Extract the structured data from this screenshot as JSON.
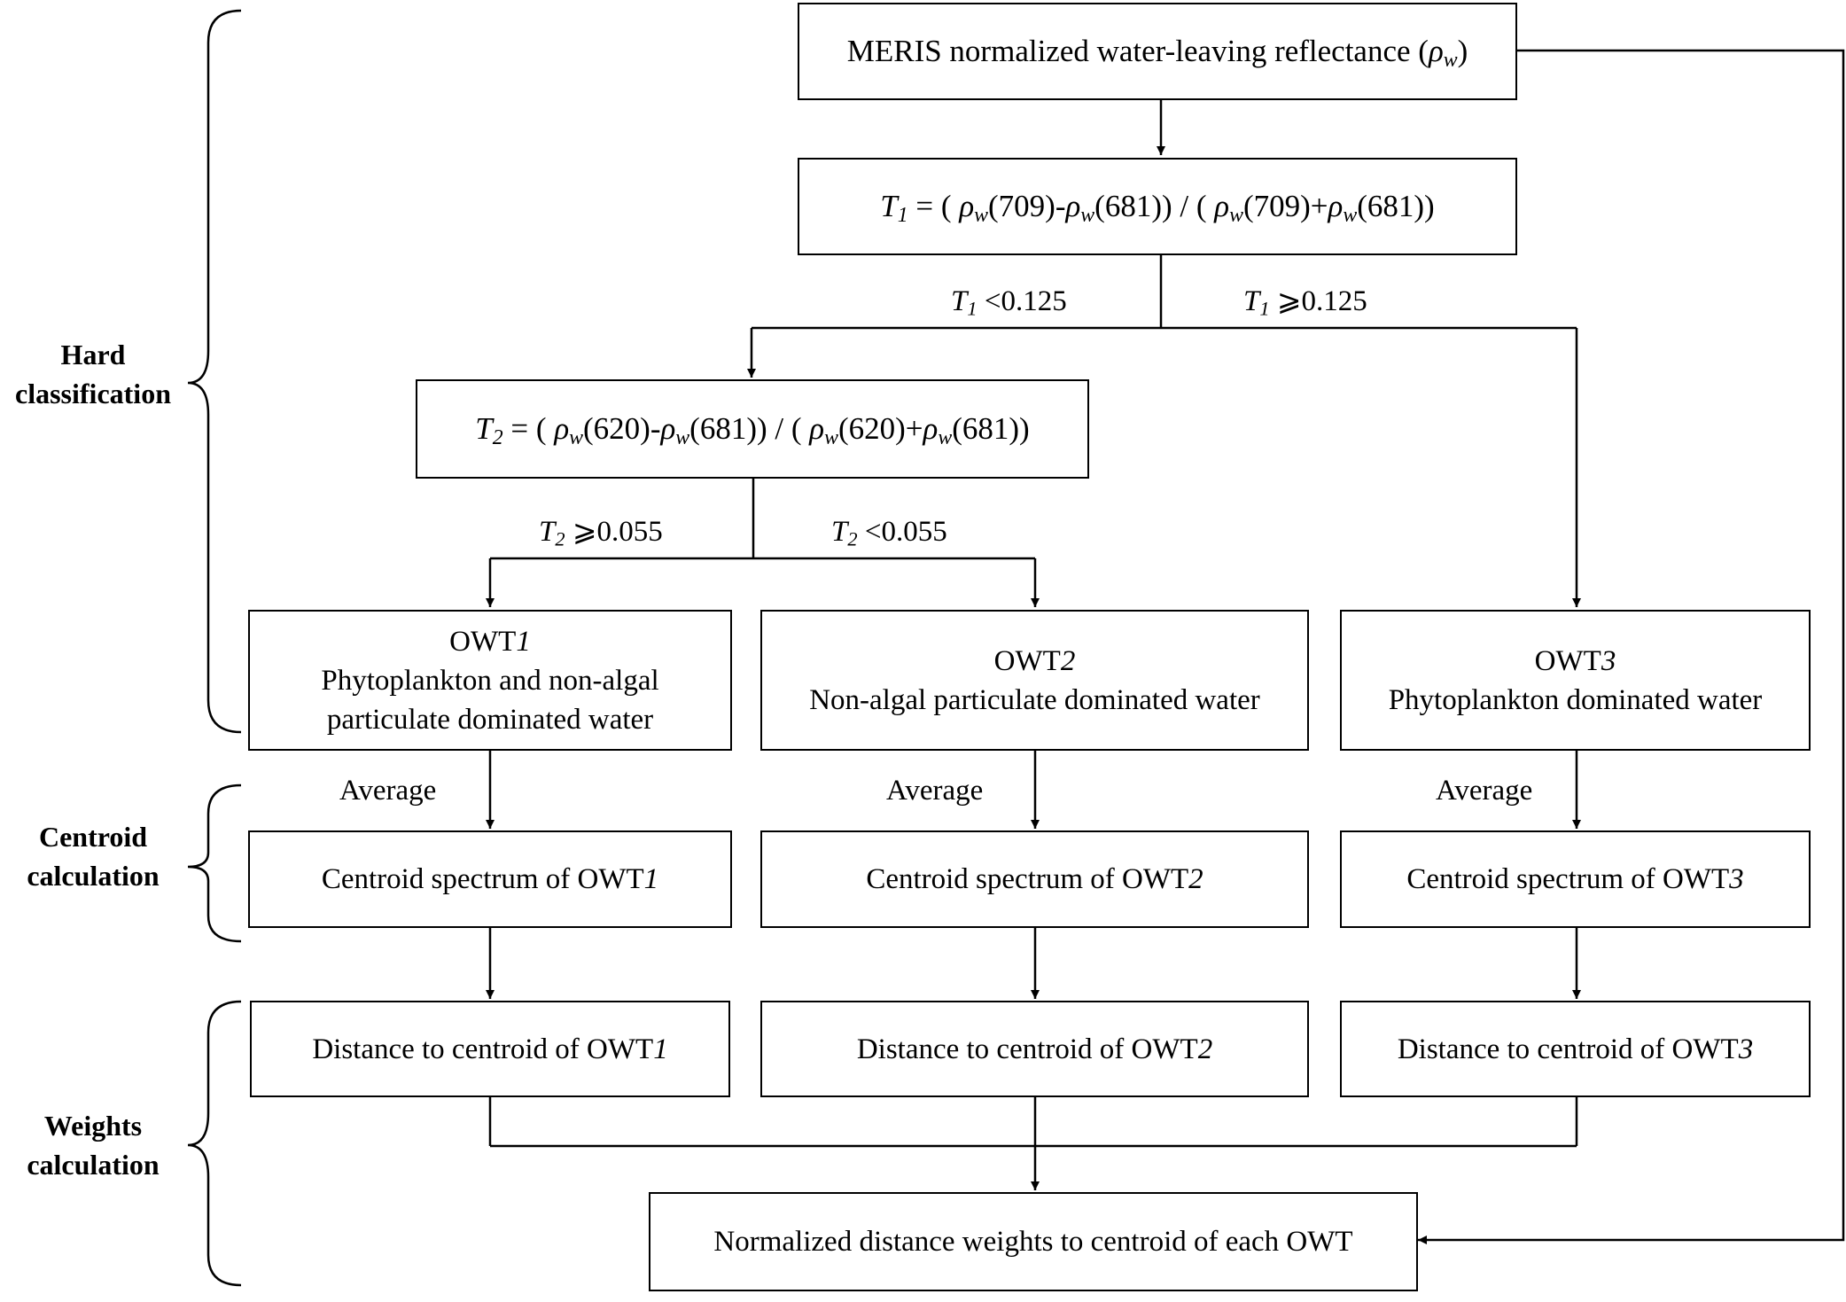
{
  "sections": {
    "hard": [
      "Hard",
      "classification"
    ],
    "centroid": [
      "Centroid",
      "calculation"
    ],
    "weights": [
      "Weights",
      "calculation"
    ]
  },
  "input": {
    "text": "MERIS normalized water-leaving reflectance (",
    "symbol": "ρ",
    "sub": "w",
    "close": ")"
  },
  "t1": {
    "lhs": "T",
    "lhs_sub": "1",
    "mid1": " = ( ",
    "rho": "ρ",
    "w": "w",
    "b1": "(709)-",
    "b2": "(681)) / ( ",
    "b3": "(709)+",
    "b4": "(681))"
  },
  "t1_branch": {
    "left": {
      "var": "T",
      "sub": "1",
      "cond": " <0.125"
    },
    "right": {
      "var": "T",
      "sub": "1",
      "cond": " ⩾0.125"
    }
  },
  "t2": {
    "lhs": "T",
    "lhs_sub": "2",
    "mid1": " = ( ",
    "rho": "ρ",
    "w": "w",
    "b1": "(620)-",
    "b2": "(681)) / ( ",
    "b3": "(620)+",
    "b4": "(681))"
  },
  "t2_branch": {
    "left": {
      "var": "T",
      "sub": "2",
      "cond": " ⩾0.055"
    },
    "right": {
      "var": "T",
      "sub": "2",
      "cond": " <0.055"
    }
  },
  "owt": [
    {
      "prefix": "OWT",
      "num": "1",
      "lines": [
        "Phytoplankton and non-algal",
        "particulate dominated water"
      ]
    },
    {
      "prefix": "OWT",
      "num": "2",
      "lines": [
        "Non-algal particulate dominated water"
      ]
    },
    {
      "prefix": "OWT",
      "num": "3",
      "lines": [
        "Phytoplankton dominated water"
      ]
    }
  ],
  "average_label": "Average",
  "centroid": [
    {
      "text": "Centroid spectrum  of OWT",
      "num": "1"
    },
    {
      "text": "Centroid  spectrum  of OWT",
      "num": "2"
    },
    {
      "text": "Centroid  spectrum  of OWT",
      "num": "3"
    }
  ],
  "distance": [
    {
      "text": "Distance to centroid of OWT",
      "num": "1"
    },
    {
      "text": "Distance to centroid of OWT",
      "num": "2"
    },
    {
      "text": "Distance to centroid of OWT",
      "num": "3"
    }
  ],
  "output": {
    "text": "Normalized distance weights to centroid of each OWT"
  }
}
